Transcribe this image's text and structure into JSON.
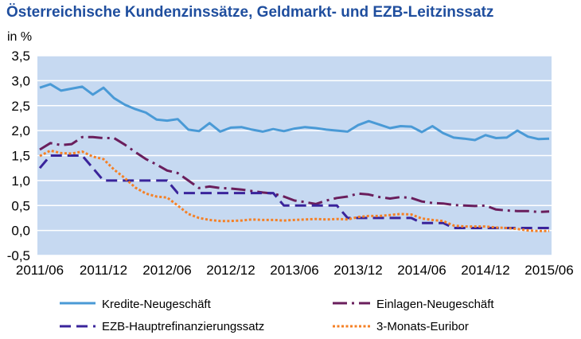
{
  "chart_data": {
    "type": "line",
    "title": "Österreichische Kundenzinssätze, Geldmarkt- und EZB-Leitzinssatz",
    "ylabel": "in %",
    "ylim": [
      -0.5,
      3.5
    ],
    "yticks": [
      "3,5",
      "3,0",
      "2,5",
      "2,0",
      "1,5",
      "1,0",
      "0,5",
      "0,0",
      "-0,5"
    ],
    "xticks": [
      "2011/06",
      "2011/12",
      "2012/06",
      "2012/12",
      "2013/06",
      "2013/12",
      "2014/06",
      "2014/12",
      "2015/06"
    ],
    "x": [
      "2011/06",
      "2011/07",
      "2011/08",
      "2011/09",
      "2011/10",
      "2011/11",
      "2011/12",
      "2012/01",
      "2012/02",
      "2012/03",
      "2012/04",
      "2012/05",
      "2012/06",
      "2012/07",
      "2012/08",
      "2012/09",
      "2012/10",
      "2012/11",
      "2012/12",
      "2013/01",
      "2013/02",
      "2013/03",
      "2013/04",
      "2013/05",
      "2013/06",
      "2013/07",
      "2013/08",
      "2013/09",
      "2013/10",
      "2013/11",
      "2013/12",
      "2014/01",
      "2014/02",
      "2014/03",
      "2014/04",
      "2014/05",
      "2014/06",
      "2014/07",
      "2014/08",
      "2014/09",
      "2014/10",
      "2014/11",
      "2014/12",
      "2015/01",
      "2015/02",
      "2015/03",
      "2015/04",
      "2015/05",
      "2015/06"
    ],
    "grid": "horizontal",
    "legend_position": "bottom",
    "colors": {
      "title": "#1F4E9E",
      "plot_background": "#C6D9F1",
      "gridline": "#FFFFFF"
    },
    "series": [
      {
        "name": "Kredite-Neugeschäft",
        "color": "#4A9AD6",
        "line_style": "solid",
        "values": [
          2.86,
          2.93,
          2.8,
          2.84,
          2.88,
          2.72,
          2.86,
          2.65,
          2.52,
          2.43,
          2.36,
          2.22,
          2.2,
          2.23,
          2.02,
          1.99,
          2.15,
          1.98,
          2.06,
          2.07,
          2.02,
          1.98,
          2.03,
          1.99,
          2.04,
          2.07,
          2.05,
          2.02,
          2.0,
          1.98,
          2.11,
          2.19,
          2.12,
          2.05,
          2.09,
          2.08,
          1.97,
          2.09,
          1.95,
          1.86,
          1.84,
          1.81,
          1.91,
          1.85,
          1.86,
          2.0,
          1.88,
          1.83,
          1.84
        ]
      },
      {
        "name": "Einlagen-Neugeschäft",
        "color": "#6A1E5C",
        "line_style": "dash-dot",
        "values": [
          1.62,
          1.75,
          1.71,
          1.73,
          1.87,
          1.87,
          1.85,
          1.85,
          1.72,
          1.57,
          1.43,
          1.32,
          1.2,
          1.15,
          1.0,
          0.85,
          0.88,
          0.85,
          0.84,
          0.82,
          0.79,
          0.76,
          0.74,
          0.68,
          0.6,
          0.57,
          0.53,
          0.6,
          0.65,
          0.68,
          0.74,
          0.72,
          0.67,
          0.64,
          0.67,
          0.65,
          0.58,
          0.55,
          0.54,
          0.51,
          0.5,
          0.49,
          0.5,
          0.42,
          0.4,
          0.39,
          0.39,
          0.37,
          0.38
        ]
      },
      {
        "name": "EZB-Hauptrefinanzierungssatz",
        "color": "#3A249B",
        "line_style": "dashed",
        "values": [
          1.25,
          1.5,
          1.5,
          1.5,
          1.5,
          1.25,
          1.0,
          1.0,
          1.0,
          1.0,
          1.0,
          1.0,
          1.0,
          0.75,
          0.75,
          0.75,
          0.75,
          0.75,
          0.75,
          0.75,
          0.75,
          0.75,
          0.75,
          0.5,
          0.5,
          0.5,
          0.5,
          0.5,
          0.5,
          0.25,
          0.25,
          0.25,
          0.25,
          0.25,
          0.25,
          0.25,
          0.15,
          0.15,
          0.15,
          0.05,
          0.05,
          0.05,
          0.05,
          0.05,
          0.05,
          0.05,
          0.05,
          0.05,
          0.05
        ]
      },
      {
        "name": "3-Monats-Euribor",
        "color": "#F58025",
        "line_style": "dotted",
        "values": [
          1.49,
          1.6,
          1.55,
          1.54,
          1.58,
          1.48,
          1.43,
          1.22,
          1.05,
          0.86,
          0.74,
          0.68,
          0.66,
          0.5,
          0.33,
          0.25,
          0.21,
          0.19,
          0.19,
          0.2,
          0.22,
          0.21,
          0.21,
          0.2,
          0.21,
          0.22,
          0.23,
          0.22,
          0.23,
          0.22,
          0.27,
          0.29,
          0.29,
          0.31,
          0.33,
          0.32,
          0.24,
          0.21,
          0.19,
          0.1,
          0.08,
          0.08,
          0.08,
          0.06,
          0.05,
          0.03,
          0.0,
          -0.01,
          -0.01
        ]
      }
    ]
  }
}
